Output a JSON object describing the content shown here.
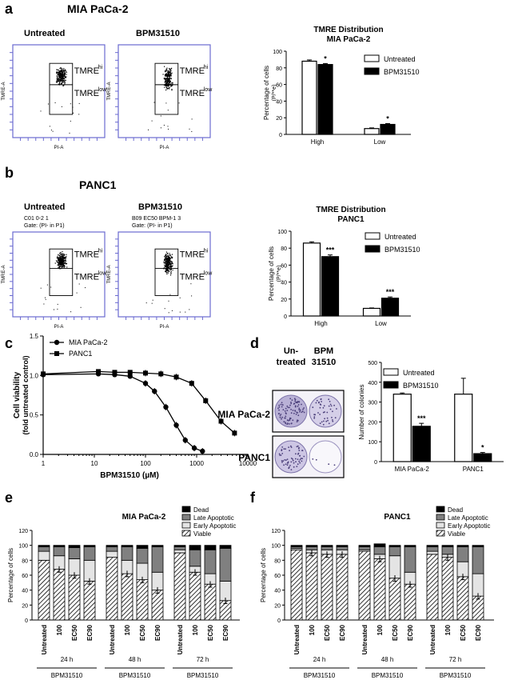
{
  "panels": {
    "a": {
      "letter": "a",
      "title": "MIA PaCa-2",
      "flow": [
        {
          "label": "Untreated",
          "hi": "TMRE",
          "hi_sup": "hi",
          "low": "TMRE",
          "low_sup": "low",
          "ylabel": "TMRE-A",
          "xlabel": "PI-A"
        },
        {
          "label": "BPM31510",
          "hi": "TMRE",
          "hi_sup": "hi",
          "low": "TMRE",
          "low_sup": "low",
          "ylabel": "TMRE-A",
          "xlabel": "PI-A"
        }
      ]
    },
    "b": {
      "letter": "b",
      "title": "PANC1",
      "flow": [
        {
          "label": "Untreated",
          "gate1": "C01 0-2 1",
          "gate2": "Gate: (PI- in P1)",
          "hi": "TMRE",
          "hi_sup": "hi",
          "low": "TMRE",
          "low_sup": "low",
          "ylabel": "TMRE-A",
          "xlabel": "PI-A"
        },
        {
          "label": "BPM31510",
          "gate1": "B09 EC50 BPM-1 3",
          "gate2": "Gate: (PI- in P1)",
          "hi": "TMRE",
          "hi_sup": "hi",
          "low": "TMRE",
          "low_sup": "low",
          "ylabel": "TMRE-A",
          "xlabel": "PI-A"
        }
      ]
    },
    "c": {
      "letter": "c"
    },
    "d": {
      "letter": "d",
      "col1": "Un-\ntreated",
      "col1a": "Un-",
      "col1b": "treated",
      "col2a": "BPM",
      "col2b": "31510",
      "row1": "MIA PaCa-2",
      "row2": "PANC1"
    },
    "e": {
      "letter": "e"
    },
    "f": {
      "letter": "f"
    }
  },
  "chart_data": [
    {
      "id": "a_bar",
      "type": "bar",
      "title": "TMRE Distribution",
      "subtitle": "MIA PaCa-2",
      "ylabel": "Percentage of cells",
      "ylabel2": "(P/**e)",
      "categories": [
        "High",
        "Low"
      ],
      "ylim": [
        0,
        100
      ],
      "yticks": [
        0,
        20,
        40,
        60,
        80,
        100
      ],
      "series": [
        {
          "name": "Untreated",
          "color": "#ffffff",
          "values": [
            88,
            7
          ],
          "err": [
            1.5,
            0.8
          ]
        },
        {
          "name": "BPM31510",
          "color": "#000000",
          "values": [
            84,
            12
          ],
          "err": [
            1.2,
            1.0
          ]
        }
      ],
      "annotations": [
        "*",
        "*"
      ]
    },
    {
      "id": "b_bar",
      "type": "bar",
      "title": "TMRE Distribution",
      "subtitle": "PANC1",
      "ylabel": "Percentage of cells",
      "ylabel2": "(P/**e)",
      "categories": [
        "High",
        "Low"
      ],
      "ylim": [
        0,
        100
      ],
      "yticks": [
        0,
        20,
        40,
        60,
        80,
        100
      ],
      "series": [
        {
          "name": "Untreated",
          "color": "#ffffff",
          "values": [
            86,
            9
          ],
          "err": [
            1.5,
            0.5
          ]
        },
        {
          "name": "BPM31510",
          "color": "#000000",
          "values": [
            70,
            21
          ],
          "err": [
            2.0,
            1.5
          ]
        }
      ],
      "annotations": [
        "***",
        "***"
      ]
    },
    {
      "id": "c_line",
      "type": "line",
      "xlabel": "BPM31510 (µM)",
      "ylabel": "Cell viability",
      "ylabel2": "(fold untreated control)",
      "xscale": "log",
      "xlim": [
        1,
        10000
      ],
      "xticks": [
        1,
        10,
        100,
        1000,
        10000
      ],
      "xticklabels": [
        "1",
        "10",
        "100",
        "1000",
        "10000"
      ],
      "ylim": [
        0,
        1.5
      ],
      "yticks": [
        0.0,
        0.5,
        1.0,
        1.5
      ],
      "yticklabels": [
        "0.0",
        "0.5",
        "1.0",
        "1.5"
      ],
      "series": [
        {
          "name": "MIA PaCa-2",
          "marker": "circle",
          "x": [
            1,
            12,
            25,
            50,
            100,
            150,
            250,
            400,
            600,
            900,
            1300
          ],
          "y": [
            1.01,
            1.02,
            1.01,
            0.99,
            0.9,
            0.8,
            0.6,
            0.37,
            0.18,
            0.08,
            0.04
          ]
        },
        {
          "name": "PANC1",
          "marker": "square",
          "x": [
            1,
            12,
            25,
            50,
            100,
            200,
            400,
            800,
            1500,
            3000,
            5500
          ],
          "y": [
            1.02,
            1.05,
            1.04,
            1.04,
            1.03,
            1.02,
            0.98,
            0.9,
            0.68,
            0.42,
            0.27
          ]
        }
      ]
    },
    {
      "id": "d_bar",
      "type": "bar",
      "ylabel": "Number of colonies",
      "categories": [
        "MIA PaCa-2",
        "PANC1"
      ],
      "ylim": [
        0,
        500
      ],
      "yticks": [
        0,
        100,
        200,
        300,
        400,
        500
      ],
      "series": [
        {
          "name": "Untreated",
          "color": "#ffffff",
          "values": [
            340,
            340
          ],
          "err": [
            6,
            80
          ]
        },
        {
          "name": "BPM31510",
          "color": "#000000",
          "values": [
            178,
            40
          ],
          "err": [
            15,
            6
          ]
        }
      ],
      "annotations": [
        "***",
        "*"
      ]
    },
    {
      "id": "e_stack",
      "type": "bar",
      "title": "MIA PaCa-2",
      "ylabel": "Percentage of cells",
      "ylim": [
        0,
        120
      ],
      "yticks": [
        0,
        20,
        40,
        60,
        80,
        100,
        120
      ],
      "categories": [
        "Untreated",
        "100",
        "EC50",
        "EC90",
        "Untreated",
        "100",
        "EC50",
        "EC90",
        "Untreated",
        "100",
        "EC50",
        "EC90"
      ],
      "groups": [
        {
          "time": "24 h",
          "drug": "BPM31510"
        },
        {
          "time": "48 h",
          "drug": "BPM31510"
        },
        {
          "time": "72 h",
          "drug": "BPM31510"
        }
      ],
      "legend": [
        "Dead",
        "Late Apoptotic",
        "Early Apoptotic",
        "Viable"
      ],
      "series": [
        {
          "name": "Viable",
          "values": [
            80,
            68,
            60,
            52,
            84,
            62,
            54,
            40,
            90,
            64,
            48,
            26
          ]
        },
        {
          "name": "Early Apoptotic",
          "values": [
            12,
            18,
            22,
            28,
            8,
            18,
            22,
            24,
            4,
            8,
            14,
            26
          ]
        },
        {
          "name": "Late Apoptotic",
          "values": [
            6,
            12,
            15,
            18,
            6,
            18,
            20,
            34,
            4,
            22,
            32,
            44
          ]
        },
        {
          "name": "Dead",
          "values": [
            2,
            2,
            3,
            2,
            2,
            2,
            4,
            2,
            2,
            6,
            6,
            4
          ]
        }
      ]
    },
    {
      "id": "f_stack",
      "type": "bar",
      "title": "PANC1",
      "ylabel": "Percentage of cells",
      "ylim": [
        0,
        120
      ],
      "yticks": [
        0,
        20,
        40,
        60,
        80,
        100,
        120
      ],
      "categories": [
        "Untreated",
        "100",
        "EC50",
        "EC90",
        "Untreated",
        "100",
        "EC50",
        "EC90",
        "Untreated",
        "100",
        "EC50",
        "EC90"
      ],
      "groups": [
        {
          "time": "24 h",
          "drug": "BPM31510"
        },
        {
          "time": "48 h",
          "drug": "BPM31510"
        },
        {
          "time": "72 h",
          "drug": "BPM31510"
        }
      ],
      "legend": [
        "Dead",
        "Late Apoptotic",
        "Early Apoptotic",
        "Viable"
      ],
      "series": [
        {
          "name": "Viable",
          "values": [
            94,
            90,
            88,
            88,
            92,
            82,
            56,
            48,
            88,
            84,
            58,
            32
          ]
        },
        {
          "name": "Early Apoptotic",
          "values": [
            2,
            4,
            6,
            6,
            2,
            6,
            30,
            16,
            4,
            4,
            20,
            30
          ]
        },
        {
          "name": "Late Apoptotic",
          "values": [
            2,
            4,
            4,
            4,
            4,
            10,
            12,
            34,
            6,
            10,
            20,
            36
          ]
        },
        {
          "name": "Dead",
          "values": [
            2,
            2,
            2,
            2,
            2,
            4,
            2,
            2,
            2,
            2,
            2,
            2
          ]
        }
      ]
    }
  ]
}
